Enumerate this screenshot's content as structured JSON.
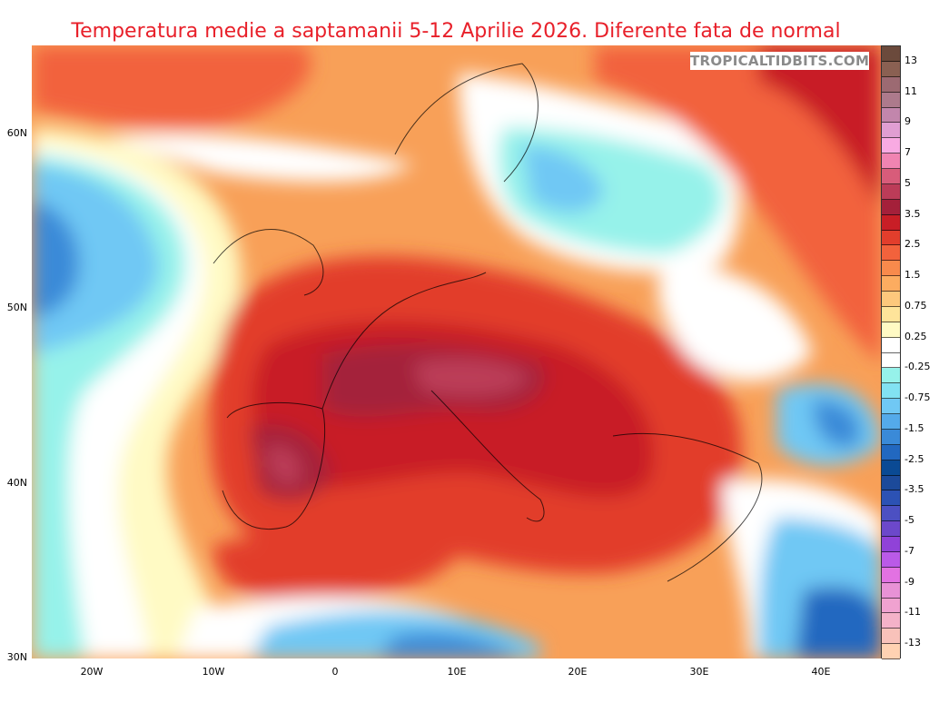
{
  "title": "Temperatura medie a saptamanii 5-12 Aprilie 2026. Diferente fata de normal",
  "watermark": "TROPICALTIDBITS.COM",
  "map": {
    "type": "temperature anomaly map",
    "region": "Europe / North Africa",
    "lat_labels": [
      "60N",
      "50N",
      "40N",
      "30N"
    ],
    "lon_labels": [
      "20W",
      "10W",
      "0",
      "10E",
      "20E",
      "30E",
      "40E"
    ]
  },
  "colorbar": {
    "labels": [
      "13",
      "11",
      "9",
      "7",
      "5",
      "3.5",
      "2.5",
      "1.5",
      "0.75",
      "0.25",
      "-0.25",
      "-0.75",
      "-1.5",
      "-2.5",
      "-3.5",
      "-5",
      "-7",
      "-9",
      "-11",
      "-13"
    ],
    "colors": [
      "#6b4a3c",
      "#8a6052",
      "#9c6a72",
      "#ad7a8c",
      "#c286ac",
      "#e09ed2",
      "#f8aae2",
      "#f084b2",
      "#d85c7a",
      "#bc3c58",
      "#a4203a",
      "#c81e26",
      "#e23e2c",
      "#f2623c",
      "#f88a4c",
      "#fcac60",
      "#fdc87c",
      "#fee49a",
      "#fffac4",
      "#ffffff",
      "#ffffff",
      "#96f2ea",
      "#82e2f2",
      "#70c8f4",
      "#54aaea",
      "#3a8ad8",
      "#2268c0",
      "#0a4a94",
      "#1c4a9a",
      "#2c52b4",
      "#4c50c2",
      "#6c48ca",
      "#9042d8",
      "#ba5ae8",
      "#e272e2",
      "#e892d6",
      "#f0a2d0",
      "#f4b2c8",
      "#f8c2ba",
      "#ffd2b2"
    ]
  }
}
